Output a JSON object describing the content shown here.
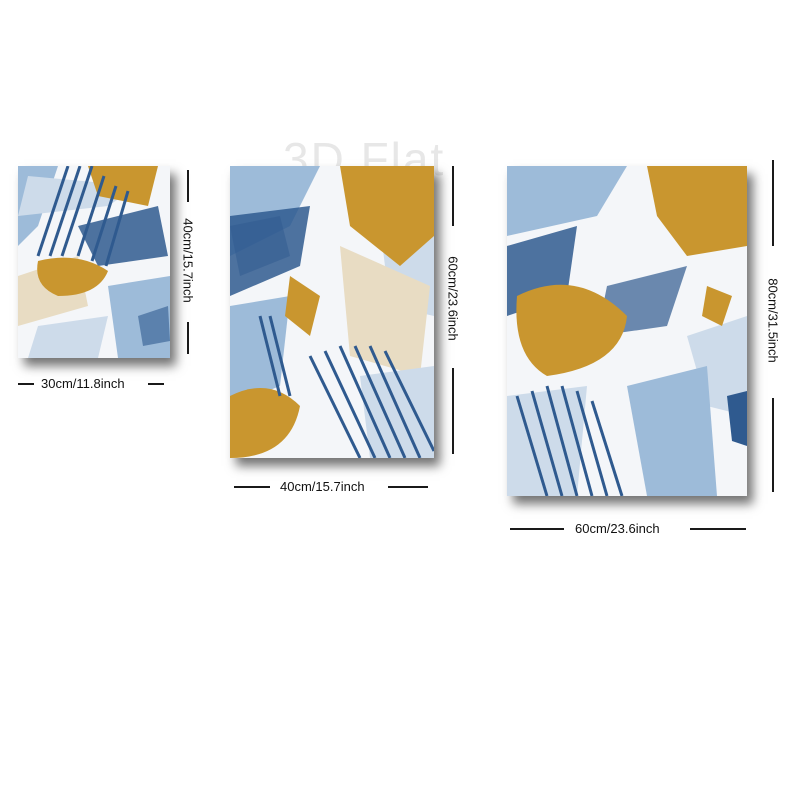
{
  "watermark": "3D Flat",
  "panels": [
    {
      "width_label": "30cm/11.8inch",
      "height_label": "40cm/15.7inch"
    },
    {
      "width_label": "40cm/15.7inch",
      "height_label": "60cm/23.6inch"
    },
    {
      "width_label": "60cm/23.6inch",
      "height_label": "80cm/31.5inch"
    }
  ],
  "colors": {
    "navy": "#2f5a8f",
    "light_blue": "#9dbbd9",
    "pale_blue": "#cddbea",
    "gold": "#c9962f",
    "beige": "#e8dcc3",
    "white": "#f6f7f9"
  }
}
